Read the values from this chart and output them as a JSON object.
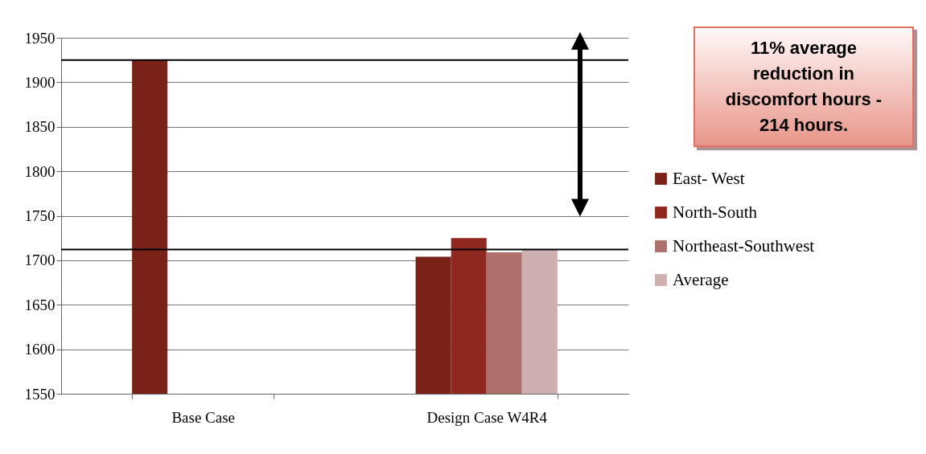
{
  "chart_data": {
    "type": "bar",
    "categories": [
      "Base Case",
      "Design Case W4R4"
    ],
    "series": [
      {
        "name": "East- West",
        "color": "#7a2118",
        "values": [
          1925,
          1704
        ]
      },
      {
        "name": "North-South",
        "color": "#8f281e",
        "values": [
          null,
          1725
        ]
      },
      {
        "name": "Northeast-Southwest",
        "color": "#ae706c",
        "values": [
          null,
          1709
        ]
      },
      {
        "name": "Average",
        "color": "#cfb0b0",
        "values": [
          null,
          1712
        ]
      }
    ],
    "ylim": [
      1550,
      1950
    ],
    "yticks": [
      1550,
      1600,
      1650,
      1700,
      1750,
      1800,
      1850,
      1900,
      1950
    ],
    "grid": "y",
    "legend": "right",
    "ref_lines": [
      {
        "axis": "y",
        "value": 1925
      },
      {
        "axis": "y",
        "value": 1712
      }
    ],
    "annotations": [
      "11% average reduction in discomfort hours - 214 hours."
    ]
  }
}
